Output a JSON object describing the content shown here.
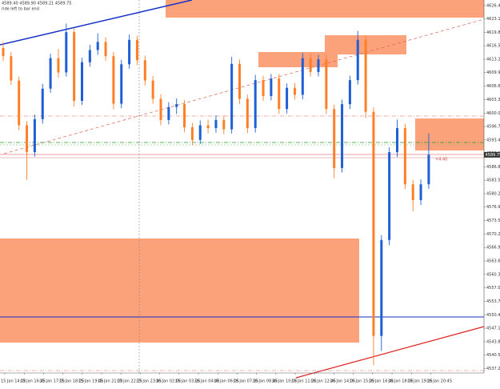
{
  "chart_data": {
    "type": "candlestick",
    "title": "4589.40 4589.90 4589.21 4589.75",
    "subtitle": "ride left to bar end",
    "annotation": "+4.40",
    "up_color": "#1f5fd6",
    "down_color": "#ff7f27",
    "open": [
      4616.0,
      4614.0,
      4608.0,
      4597.0,
      4590.4,
      4598.5,
      4606.0,
      4613.5,
      4610.0,
      4619.9,
      4603.0,
      4612.5,
      4615.5,
      4617.5,
      4614.0,
      4602.3,
      4612.0,
      4618.0,
      4613.0,
      4608.0,
      4603.5,
      4598.3,
      4601.5,
      4602.2,
      4596.5,
      4593.4,
      4597.0,
      4596.3,
      4598.3,
      4596.0,
      4612.1,
      4603.5,
      4596.3,
      4608.1,
      4604.2,
      4608.5,
      4601.0,
      4606.2,
      4604.5,
      4613.5,
      4610.1,
      4613.2,
      4601.0,
      4586.5,
      4602.2,
      4608.1,
      4618.0,
      4600.3,
      4545.2,
      4568.8,
      4590.4,
      4596.3,
      4582.5,
      4578.6,
      4582.5
    ],
    "high": [
      4617.5,
      4615.0,
      4609.0,
      4598.0,
      4599.6,
      4607.2,
      4614.6,
      4615.8,
      4622.0,
      4620.8,
      4613.6,
      4616.8,
      4619.6,
      4618.6,
      4615.0,
      4613.1,
      4619.3,
      4619.0,
      4614.1,
      4609.1,
      4604.6,
      4602.7,
      4603.6,
      4603.2,
      4597.6,
      4598.2,
      4598.4,
      4599.5,
      4599.4,
      4613.8,
      4613.2,
      4604.5,
      4609.4,
      4609.2,
      4609.6,
      4609.6,
      4607.3,
      4607.4,
      4614.8,
      4614.6,
      4614.3,
      4614.2,
      4602.1,
      4603.3,
      4609.2,
      4620.2,
      4619.1,
      4601.4,
      4570.0,
      4591.6,
      4598.4,
      4597.4,
      4583.6,
      4583.7,
      4595.0
    ],
    "low": [
      4612.8,
      4606.9,
      4595.8,
      4583.6,
      4589.3,
      4597.4,
      4605.0,
      4608.7,
      4609.0,
      4601.6,
      4602.0,
      4611.4,
      4614.3,
      4612.9,
      4600.9,
      4601.2,
      4610.9,
      4611.8,
      4606.8,
      4602.3,
      4597.0,
      4597.2,
      4599.8,
      4595.3,
      4592.1,
      4592.4,
      4595.0,
      4595.2,
      4594.8,
      4595.0,
      4602.3,
      4595.1,
      4595.2,
      4603.0,
      4603.1,
      4599.8,
      4599.9,
      4603.3,
      4603.4,
      4609.0,
      4609.0,
      4599.8,
      4584.0,
      4585.4,
      4601.0,
      4607.0,
      4598.8,
      4538.0,
      4541.5,
      4567.5,
      4589.2,
      4581.3,
      4575.8,
      4577.4,
      4581.4
    ],
    "close": [
      4614.0,
      4608.0,
      4597.0,
      4590.4,
      4598.5,
      4606.0,
      4613.5,
      4610.0,
      4619.9,
      4603.0,
      4612.5,
      4615.5,
      4617.5,
      4614.0,
      4602.3,
      4612.0,
      4618.0,
      4613.0,
      4608.0,
      4603.5,
      4598.3,
      4601.5,
      4602.2,
      4596.5,
      4593.4,
      4597.0,
      4596.3,
      4598.3,
      4596.0,
      4612.1,
      4603.5,
      4596.3,
      4608.1,
      4604.2,
      4608.5,
      4601.0,
      4606.2,
      4604.5,
      4613.5,
      4610.1,
      4613.2,
      4601.0,
      4586.5,
      4602.2,
      4608.1,
      4618.0,
      4600.3,
      4545.2,
      4568.8,
      4590.4,
      4596.3,
      4582.5,
      4578.6,
      4582.5,
      4589.75
    ],
    "x_tick_labels": [
      "15 Jan 14:05",
      "15 Jan 16:45",
      "15 Jan 17:05",
      "15 Jan 18:25",
      "15 Jan 19:45",
      "15 Jan 21:05",
      "15 Jan 22:25",
      "15 Jan 23:45",
      "16 Jan 02:05",
      "16 Jan 03:25",
      "16 Jan 04:45",
      "16 Jan 06:05",
      "16 Jan 07:25",
      "16 Jan 08:45",
      "16 Jan 10:05",
      "16 Jan 11:25",
      "16 Jan 12:45",
      "16 Jan 14:05",
      "16 Jan 15:25",
      "16 Jan 16:45",
      "16 Jan 18:05",
      "16 Jan 19:25",
      "16 Jan 20:45"
    ],
    "ylim": [
      4536.1,
      4627.8
    ],
    "yticks": [
      4626.45,
      4623.15,
      4619.85,
      4616.55,
      4613.25,
      4609.95,
      {
        "value": 4606.6,
        "label": "4606.60"
      },
      {
        "value": 4603.3,
        "label": "4603.30"
      },
      {
        "value": 4600,
        "label": "4600.00"
      },
      {
        "value": 4596.7,
        "label": "4596.70"
      },
      {
        "value": 4593.4,
        "label": "4593.40"
      },
      {
        "value": 4590.1,
        "label": "4590.10"
      },
      {
        "value": 4586.8,
        "label": "4586.80"
      },
      {
        "value": 4583.5,
        "label": "4583.50"
      },
      {
        "value": 4580.2,
        "label": "4580.20"
      },
      {
        "value": 4576.9,
        "label": "4576.90"
      },
      4573.55,
      4570.25,
      4566.95,
      4563.65,
      4560.35,
      4557.05,
      4553.75,
      {
        "value": 4550.4,
        "label": "4550.40"
      },
      {
        "value": 4547.1,
        "label": "4547.10"
      },
      {
        "value": 4543.8,
        "label": "4543.80"
      },
      {
        "value": 4540.5,
        "label": "4540.50"
      },
      {
        "value": 4537.2,
        "label": "4537.20"
      }
    ]
  }
}
